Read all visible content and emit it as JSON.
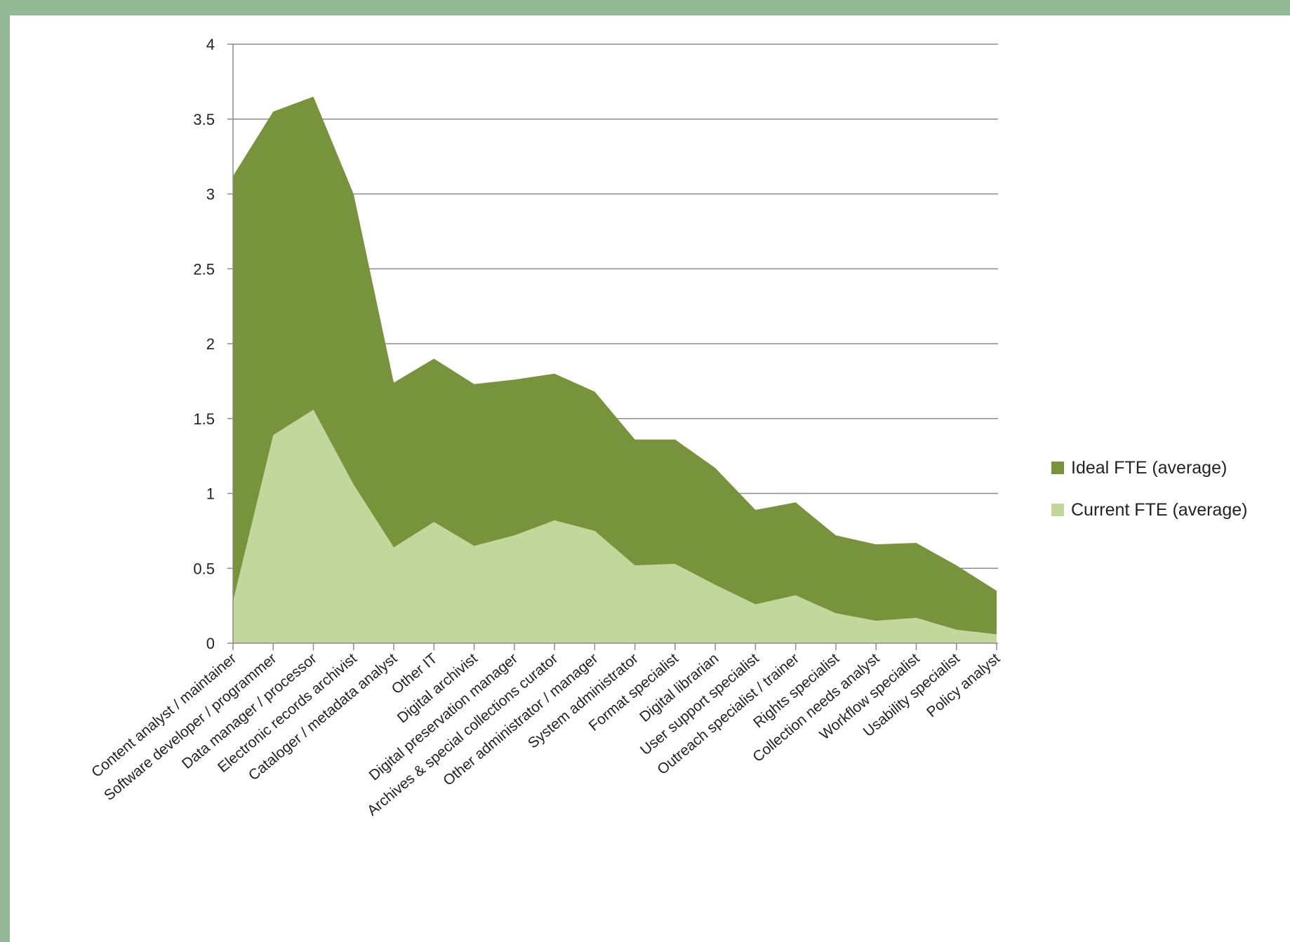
{
  "chart_data": {
    "type": "area",
    "stacked": false,
    "categories": [
      "Content analyst / maintainer",
      "Software developer / programmer",
      "Data manager / processor",
      "Electronic records archivist",
      "Cataloger / metadata  analyst",
      "Other IT",
      "Digital archivist",
      "Digital preservation manager",
      "Archives & special collections curator",
      "Other administrator  / manager",
      "System administrator",
      "Format specialist",
      "Digital librarian",
      "User support specialist",
      "Outreach specialist / trainer",
      "Rights specialist",
      "Collection needs analyst",
      "Workflow specialist",
      "Usability specialist",
      "Policy analyst"
    ],
    "series": [
      {
        "name": "Ideal FTE  (average)",
        "color": "#77933c",
        "values": [
          3.12,
          3.55,
          3.65,
          3.0,
          1.74,
          1.9,
          1.73,
          1.76,
          1.8,
          1.68,
          1.36,
          1.36,
          1.17,
          0.89,
          0.94,
          0.72,
          0.66,
          0.67,
          0.52,
          0.35
        ]
      },
      {
        "name": "Current FTE (average)",
        "color": "#c3d69b",
        "values": [
          0.28,
          1.39,
          1.56,
          1.06,
          0.64,
          0.81,
          0.65,
          0.72,
          0.82,
          0.75,
          0.52,
          0.53,
          0.39,
          0.26,
          0.32,
          0.2,
          0.15,
          0.17,
          0.09,
          0.06
        ]
      }
    ],
    "ylim": [
      0,
      4
    ],
    "yticks": [
      "0",
      "0.5",
      "1",
      "1.5",
      "2",
      "2.5",
      "3",
      "3.5",
      "4"
    ],
    "grid": true,
    "legend_position": "right"
  }
}
